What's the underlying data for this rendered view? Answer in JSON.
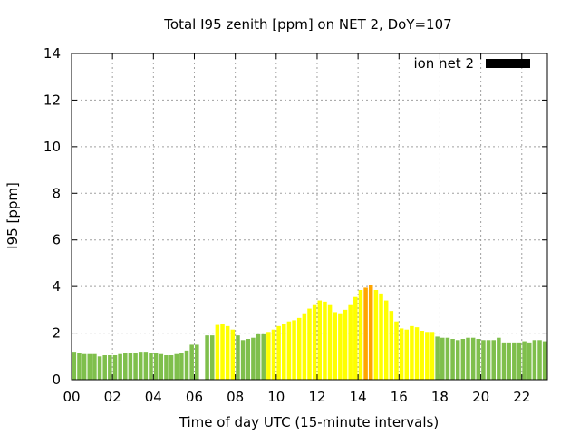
{
  "chart_data": {
    "type": "bar",
    "title": "Total I95 zenith [ppm] on NET 2, DoY=107",
    "xlabel": "Time of day UTC (15-minute intervals)",
    "ylabel": "I95 [ppm]",
    "ylim": [
      0,
      14
    ],
    "xlim": [
      0,
      23.25
    ],
    "grid": true,
    "legend": {
      "label": "ion net 2",
      "position": "top-right",
      "color": "#000000"
    },
    "xticks": [
      {
        "value": 0,
        "label": "00"
      },
      {
        "value": 2,
        "label": "02"
      },
      {
        "value": 4,
        "label": "04"
      },
      {
        "value": 6,
        "label": "06"
      },
      {
        "value": 8,
        "label": "08"
      },
      {
        "value": 10,
        "label": "10"
      },
      {
        "value": 12,
        "label": "12"
      },
      {
        "value": 14,
        "label": "14"
      },
      {
        "value": 16,
        "label": "16"
      },
      {
        "value": 18,
        "label": "18"
      },
      {
        "value": 20,
        "label": "20"
      },
      {
        "value": 22,
        "label": "22"
      }
    ],
    "yticks": [
      {
        "value": 0,
        "label": "0"
      },
      {
        "value": 2,
        "label": "2"
      },
      {
        "value": 4,
        "label": "4"
      },
      {
        "value": 6,
        "label": "6"
      },
      {
        "value": 8,
        "label": "8"
      },
      {
        "value": 10,
        "label": "10"
      },
      {
        "value": 12,
        "label": "12"
      },
      {
        "value": 14,
        "label": "14"
      }
    ],
    "interval_hours": 0.25,
    "level_colors": {
      "low": "#7fbf4c",
      "mid": "#ffff00",
      "high": "#ffa500"
    },
    "bars": [
      {
        "t": 0.0,
        "v": 1.2,
        "level": "low"
      },
      {
        "t": 0.25,
        "v": 1.15,
        "level": "low"
      },
      {
        "t": 0.5,
        "v": 1.1,
        "level": "low"
      },
      {
        "t": 0.75,
        "v": 1.1,
        "level": "low"
      },
      {
        "t": 1.0,
        "v": 1.1,
        "level": "low"
      },
      {
        "t": 1.25,
        "v": 1.0,
        "level": "low"
      },
      {
        "t": 1.5,
        "v": 1.05,
        "level": "low"
      },
      {
        "t": 1.75,
        "v": 1.05,
        "level": "low"
      },
      {
        "t": 2.0,
        "v": 1.05,
        "level": "low"
      },
      {
        "t": 2.25,
        "v": 1.1,
        "level": "low"
      },
      {
        "t": 2.5,
        "v": 1.15,
        "level": "low"
      },
      {
        "t": 2.75,
        "v": 1.15,
        "level": "low"
      },
      {
        "t": 3.0,
        "v": 1.15,
        "level": "low"
      },
      {
        "t": 3.25,
        "v": 1.2,
        "level": "low"
      },
      {
        "t": 3.5,
        "v": 1.2,
        "level": "low"
      },
      {
        "t": 3.75,
        "v": 1.15,
        "level": "low"
      },
      {
        "t": 4.0,
        "v": 1.15,
        "level": "low"
      },
      {
        "t": 4.25,
        "v": 1.1,
        "level": "low"
      },
      {
        "t": 4.5,
        "v": 1.05,
        "level": "low"
      },
      {
        "t": 4.75,
        "v": 1.05,
        "level": "low"
      },
      {
        "t": 5.0,
        "v": 1.1,
        "level": "low"
      },
      {
        "t": 5.25,
        "v": 1.15,
        "level": "low"
      },
      {
        "t": 5.5,
        "v": 1.25,
        "level": "low"
      },
      {
        "t": 5.75,
        "v": 1.5,
        "level": "low"
      },
      {
        "t": 6.0,
        "v": 1.5,
        "level": "low"
      },
      {
        "t": 6.5,
        "v": 1.9,
        "level": "low"
      },
      {
        "t": 6.75,
        "v": 1.9,
        "level": "low"
      },
      {
        "t": 7.0,
        "v": 2.35,
        "level": "mid"
      },
      {
        "t": 7.25,
        "v": 2.4,
        "level": "mid"
      },
      {
        "t": 7.5,
        "v": 2.3,
        "level": "mid"
      },
      {
        "t": 7.75,
        "v": 2.15,
        "level": "mid"
      },
      {
        "t": 8.0,
        "v": 1.9,
        "level": "low"
      },
      {
        "t": 8.25,
        "v": 1.7,
        "level": "low"
      },
      {
        "t": 8.5,
        "v": 1.75,
        "level": "low"
      },
      {
        "t": 8.75,
        "v": 1.8,
        "level": "low"
      },
      {
        "t": 9.0,
        "v": 1.95,
        "level": "low"
      },
      {
        "t": 9.25,
        "v": 1.95,
        "level": "low"
      },
      {
        "t": 9.5,
        "v": 2.05,
        "level": "mid"
      },
      {
        "t": 9.75,
        "v": 2.15,
        "level": "mid"
      },
      {
        "t": 10.0,
        "v": 2.3,
        "level": "mid"
      },
      {
        "t": 10.25,
        "v": 2.4,
        "level": "mid"
      },
      {
        "t": 10.5,
        "v": 2.5,
        "level": "mid"
      },
      {
        "t": 10.75,
        "v": 2.55,
        "level": "mid"
      },
      {
        "t": 11.0,
        "v": 2.65,
        "level": "mid"
      },
      {
        "t": 11.25,
        "v": 2.85,
        "level": "mid"
      },
      {
        "t": 11.5,
        "v": 3.05,
        "level": "mid"
      },
      {
        "t": 11.75,
        "v": 3.2,
        "level": "mid"
      },
      {
        "t": 12.0,
        "v": 3.4,
        "level": "mid"
      },
      {
        "t": 12.25,
        "v": 3.35,
        "level": "mid"
      },
      {
        "t": 12.5,
        "v": 3.2,
        "level": "mid"
      },
      {
        "t": 12.75,
        "v": 2.9,
        "level": "mid"
      },
      {
        "t": 13.0,
        "v": 2.85,
        "level": "mid"
      },
      {
        "t": 13.25,
        "v": 3.0,
        "level": "mid"
      },
      {
        "t": 13.5,
        "v": 3.2,
        "level": "mid"
      },
      {
        "t": 13.75,
        "v": 3.55,
        "level": "mid"
      },
      {
        "t": 14.0,
        "v": 3.85,
        "level": "mid"
      },
      {
        "t": 14.25,
        "v": 3.95,
        "level": "high"
      },
      {
        "t": 14.5,
        "v": 4.05,
        "level": "high"
      },
      {
        "t": 14.75,
        "v": 3.85,
        "level": "mid"
      },
      {
        "t": 15.0,
        "v": 3.7,
        "level": "mid"
      },
      {
        "t": 15.25,
        "v": 3.4,
        "level": "mid"
      },
      {
        "t": 15.5,
        "v": 2.95,
        "level": "mid"
      },
      {
        "t": 15.75,
        "v": 2.5,
        "level": "mid"
      },
      {
        "t": 16.0,
        "v": 2.2,
        "level": "mid"
      },
      {
        "t": 16.25,
        "v": 2.15,
        "level": "mid"
      },
      {
        "t": 16.5,
        "v": 2.3,
        "level": "mid"
      },
      {
        "t": 16.75,
        "v": 2.25,
        "level": "mid"
      },
      {
        "t": 17.0,
        "v": 2.1,
        "level": "mid"
      },
      {
        "t": 17.25,
        "v": 2.05,
        "level": "mid"
      },
      {
        "t": 17.5,
        "v": 2.05,
        "level": "mid"
      },
      {
        "t": 17.75,
        "v": 1.85,
        "level": "low"
      },
      {
        "t": 18.0,
        "v": 1.8,
        "level": "low"
      },
      {
        "t": 18.25,
        "v": 1.8,
        "level": "low"
      },
      {
        "t": 18.5,
        "v": 1.75,
        "level": "low"
      },
      {
        "t": 18.75,
        "v": 1.7,
        "level": "low"
      },
      {
        "t": 19.0,
        "v": 1.75,
        "level": "low"
      },
      {
        "t": 19.25,
        "v": 1.8,
        "level": "low"
      },
      {
        "t": 19.5,
        "v": 1.8,
        "level": "low"
      },
      {
        "t": 19.75,
        "v": 1.75,
        "level": "low"
      },
      {
        "t": 20.0,
        "v": 1.7,
        "level": "low"
      },
      {
        "t": 20.25,
        "v": 1.7,
        "level": "low"
      },
      {
        "t": 20.5,
        "v": 1.7,
        "level": "low"
      },
      {
        "t": 20.75,
        "v": 1.8,
        "level": "low"
      },
      {
        "t": 21.0,
        "v": 1.6,
        "level": "low"
      },
      {
        "t": 21.25,
        "v": 1.6,
        "level": "low"
      },
      {
        "t": 21.5,
        "v": 1.6,
        "level": "low"
      },
      {
        "t": 21.75,
        "v": 1.6,
        "level": "low"
      },
      {
        "t": 22.0,
        "v": 1.65,
        "level": "low"
      },
      {
        "t": 22.25,
        "v": 1.6,
        "level": "low"
      },
      {
        "t": 22.5,
        "v": 1.7,
        "level": "low"
      },
      {
        "t": 22.75,
        "v": 1.7,
        "level": "low"
      },
      {
        "t": 23.0,
        "v": 1.65,
        "level": "low"
      }
    ]
  }
}
